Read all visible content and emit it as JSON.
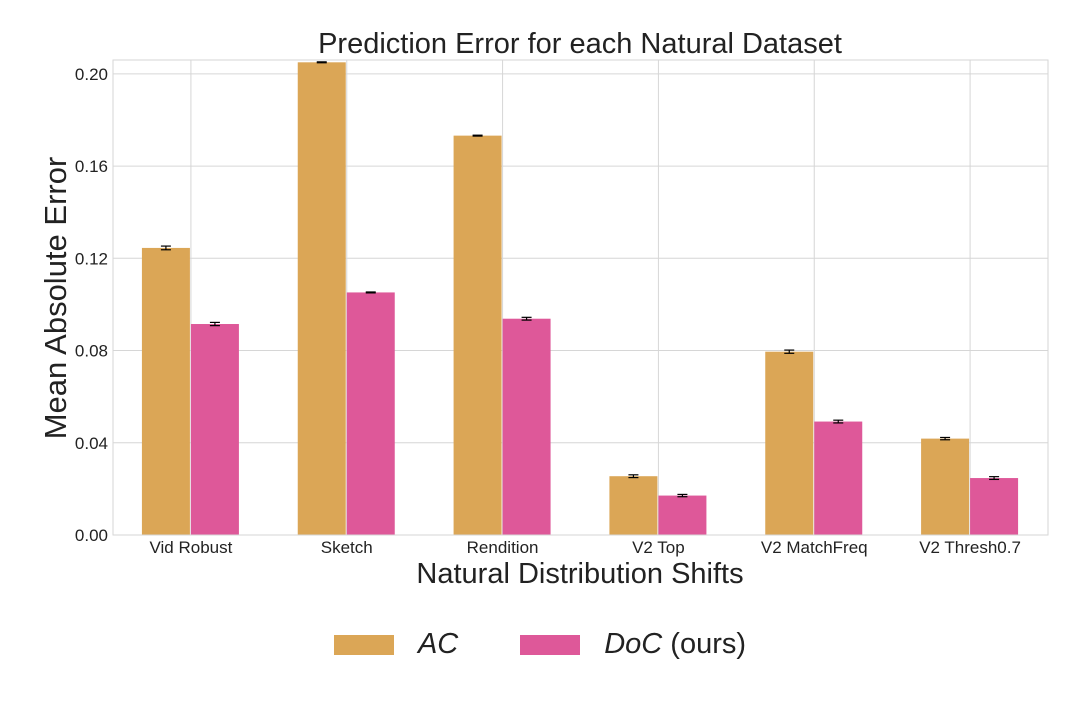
{
  "chart_data": {
    "type": "bar",
    "title": "Prediction Error for each Natural Dataset",
    "xlabel": "Natural Distribution Shifts",
    "ylabel": "Mean Absolute Error",
    "categories": [
      "Vid Robust",
      "Sketch",
      "Rendition",
      "V2 Top",
      "V2 MatchFreq",
      "V2 Thresh0.7"
    ],
    "ylim": [
      0,
      0.206
    ],
    "yticks": [
      "0.00",
      "0.04",
      "0.08",
      "0.12",
      "0.16",
      "0.20"
    ],
    "grid": true,
    "legend_position": "bottom-center",
    "series": [
      {
        "name": "AC",
        "color": "#DBA656",
        "values": [
          0.1245,
          0.205,
          0.1732,
          0.0255,
          0.0795,
          0.0418
        ],
        "errors": [
          0.0008,
          0.0002,
          0.0002,
          0.0006,
          0.0007,
          0.0005
        ]
      },
      {
        "name": "DoC",
        "color": "#DE5899",
        "values": [
          0.0915,
          0.1052,
          0.0938,
          0.0171,
          0.0492,
          0.0247
        ],
        "errors": [
          0.0007,
          0.0002,
          0.0006,
          0.0005,
          0.0006,
          0.0006
        ]
      }
    ]
  },
  "legend": {
    "items": [
      {
        "name": "AC",
        "suffix": "",
        "color": "#DBA656"
      },
      {
        "name": "DoC",
        "suffix": " (ours)",
        "color": "#DE5899"
      }
    ]
  }
}
